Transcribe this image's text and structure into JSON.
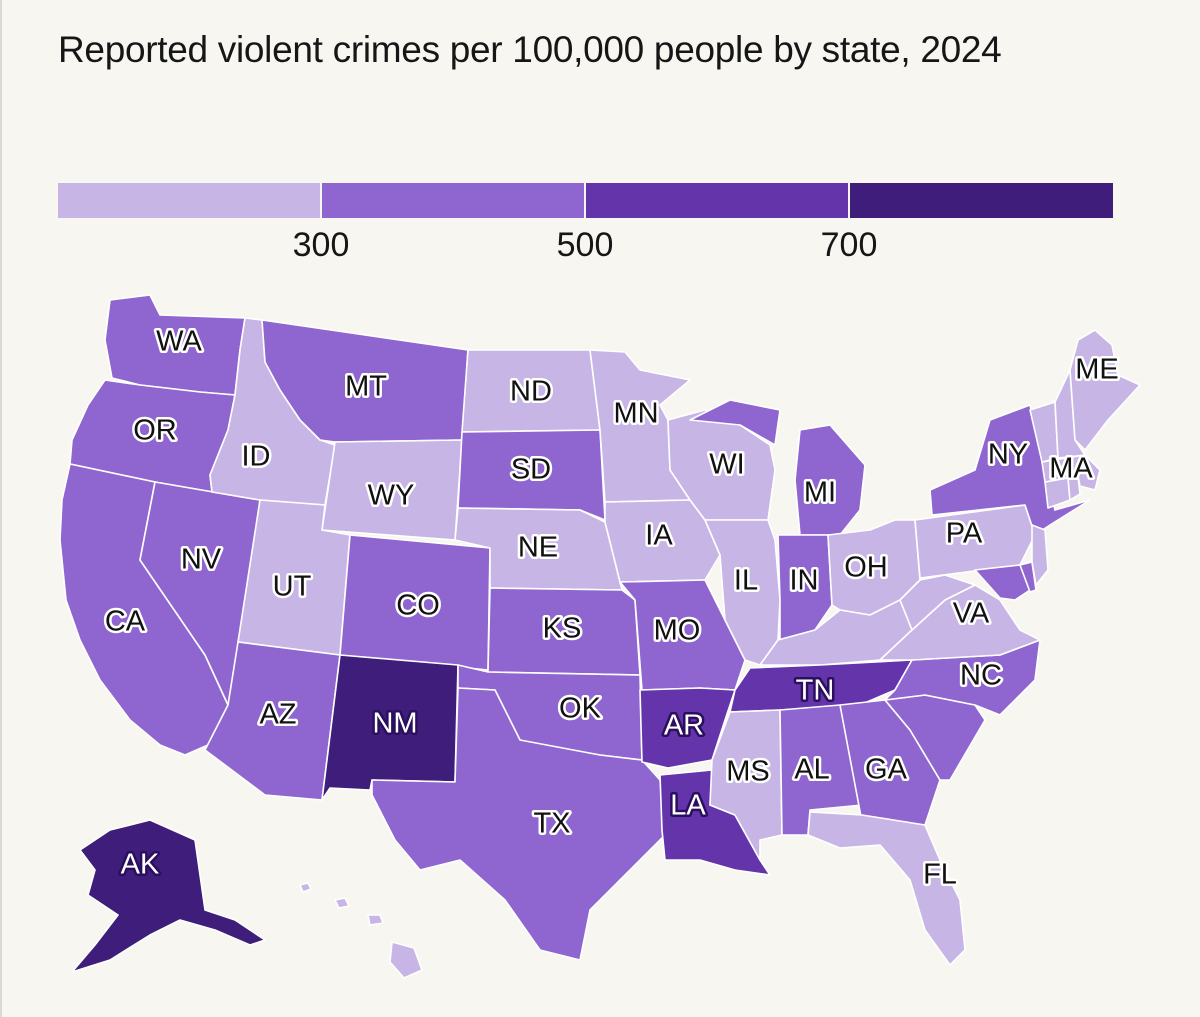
{
  "title": "Reported violent crimes per 100,000 people by state, 2024",
  "colors": {
    "background": "#f7f6f1",
    "bin_1_below_300": "#c7b5e6",
    "bin_2_300_500": "#8f66cf",
    "bin_3_500_700": "#6434ab",
    "bin_4_above_700": "#3f1d7a"
  },
  "legend": {
    "ticks": [
      "300",
      "500",
      "700"
    ],
    "bins": [
      {
        "range": "<300",
        "color": "#c7b5e6"
      },
      {
        "range": "300-500",
        "color": "#8f66cf"
      },
      {
        "range": "500-700",
        "color": "#6434ab"
      },
      {
        "range": ">700",
        "color": "#3f1d7a"
      }
    ]
  },
  "states": {
    "WA": {
      "label": "WA",
      "bin": 2
    },
    "OR": {
      "label": "OR",
      "bin": 2
    },
    "CA": {
      "label": "CA",
      "bin": 2
    },
    "NV": {
      "label": "NV",
      "bin": 2
    },
    "ID": {
      "label": "ID",
      "bin": 1
    },
    "MT": {
      "label": "MT",
      "bin": 2
    },
    "WY": {
      "label": "WY",
      "bin": 1
    },
    "UT": {
      "label": "UT",
      "bin": 1
    },
    "AZ": {
      "label": "AZ",
      "bin": 2
    },
    "CO": {
      "label": "CO",
      "bin": 2
    },
    "NM": {
      "label": "NM",
      "bin": 4
    },
    "ND": {
      "label": "ND",
      "bin": 1
    },
    "SD": {
      "label": "SD",
      "bin": 2
    },
    "NE": {
      "label": "NE",
      "bin": 1
    },
    "KS": {
      "label": "KS",
      "bin": 2
    },
    "OK": {
      "label": "OK",
      "bin": 2
    },
    "TX": {
      "label": "TX",
      "bin": 2
    },
    "MN": {
      "label": "MN",
      "bin": 1
    },
    "IA": {
      "label": "IA",
      "bin": 1
    },
    "MO": {
      "label": "MO",
      "bin": 2
    },
    "AR": {
      "label": "AR",
      "bin": 3
    },
    "LA": {
      "label": "LA",
      "bin": 3
    },
    "WI": {
      "label": "WI",
      "bin": 1
    },
    "IL": {
      "label": "IL",
      "bin": 1
    },
    "MI": {
      "label": "MI",
      "bin": 2
    },
    "IN": {
      "label": "IN",
      "bin": 2
    },
    "OH": {
      "label": "OH",
      "bin": 1
    },
    "KY": {
      "label": "",
      "bin": 1
    },
    "TN": {
      "label": "TN",
      "bin": 3
    },
    "MS": {
      "label": "MS",
      "bin": 1
    },
    "AL": {
      "label": "AL",
      "bin": 2
    },
    "GA": {
      "label": "GA",
      "bin": 2
    },
    "FL": {
      "label": "FL",
      "bin": 1
    },
    "SC": {
      "label": "",
      "bin": 2
    },
    "NC": {
      "label": "NC",
      "bin": 2
    },
    "VA": {
      "label": "VA",
      "bin": 1
    },
    "WV": {
      "label": "",
      "bin": 1
    },
    "PA": {
      "label": "PA",
      "bin": 1
    },
    "NY": {
      "label": "NY",
      "bin": 2
    },
    "MD": {
      "label": "",
      "bin": 2
    },
    "DE": {
      "label": "",
      "bin": 2
    },
    "NJ": {
      "label": "",
      "bin": 1
    },
    "CT": {
      "label": "",
      "bin": 1
    },
    "RI": {
      "label": "",
      "bin": 1
    },
    "MA": {
      "label": "MA",
      "bin": 1
    },
    "VT": {
      "label": "",
      "bin": 1
    },
    "NH": {
      "label": "",
      "bin": 1
    },
    "ME": {
      "label": "ME",
      "bin": 1
    },
    "AK": {
      "label": "AK",
      "bin": 4
    },
    "HI": {
      "label": "",
      "bin": 1
    }
  }
}
